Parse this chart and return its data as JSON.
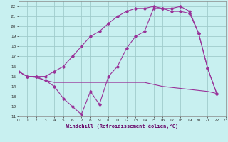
{
  "xlabel": "Windchill (Refroidissement éolien,°C)",
  "background_color": "#c8f0f0",
  "grid_color": "#a0cccc",
  "line_color": "#993399",
  "xlim": [
    0,
    23
  ],
  "ylim": [
    11,
    22.5
  ],
  "xticks": [
    0,
    1,
    2,
    3,
    4,
    5,
    6,
    7,
    8,
    9,
    10,
    11,
    12,
    13,
    14,
    15,
    16,
    17,
    18,
    19,
    20,
    21,
    22,
    23
  ],
  "yticks": [
    11,
    12,
    13,
    14,
    15,
    16,
    17,
    18,
    19,
    20,
    21,
    22
  ],
  "line1_x": [
    0,
    1,
    2,
    3,
    4,
    5,
    6,
    7,
    8,
    9,
    10,
    11,
    12,
    13,
    14,
    15,
    16,
    17,
    18,
    19,
    20,
    21,
    22
  ],
  "line1_y": [
    15.5,
    15.0,
    15.0,
    14.6,
    14.0,
    12.8,
    12.0,
    11.2,
    13.5,
    12.2,
    15.0,
    16.0,
    17.8,
    19.0,
    19.5,
    21.8,
    21.8,
    21.8,
    22.0,
    21.5,
    19.3,
    15.8,
    13.3
  ],
  "line2_x": [
    0,
    1,
    2,
    3,
    4,
    5,
    6,
    7,
    8,
    9,
    10,
    11,
    12,
    13,
    14,
    15,
    16,
    17,
    18,
    19,
    20,
    21,
    22
  ],
  "line2_y": [
    15.5,
    15.0,
    14.9,
    14.6,
    14.4,
    14.4,
    14.4,
    14.4,
    14.4,
    14.4,
    14.4,
    14.4,
    14.4,
    14.4,
    14.4,
    14.2,
    14.0,
    13.9,
    13.8,
    13.7,
    13.6,
    13.5,
    13.3
  ],
  "line3_x": [
    0,
    1,
    2,
    3,
    4,
    5,
    6,
    7,
    8,
    9,
    10,
    11,
    12,
    13,
    14,
    15,
    16,
    17,
    18,
    19,
    20,
    21,
    22
  ],
  "line3_y": [
    15.5,
    15.0,
    15.0,
    15.0,
    15.5,
    16.0,
    17.0,
    18.0,
    19.0,
    19.5,
    20.3,
    21.0,
    21.5,
    21.8,
    21.8,
    22.0,
    21.8,
    21.5,
    21.5,
    21.3,
    19.3,
    15.8,
    13.3
  ]
}
